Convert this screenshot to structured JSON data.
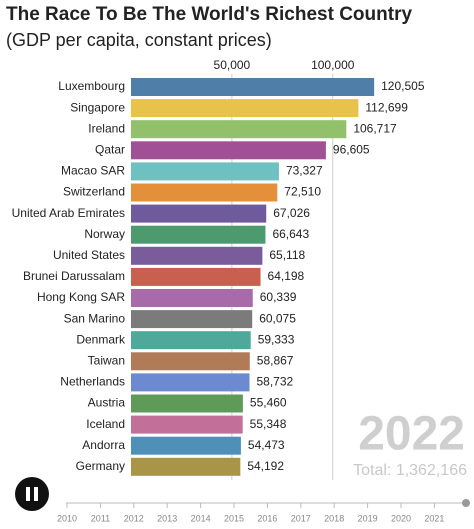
{
  "chart_data": {
    "type": "bar",
    "orientation": "horizontal",
    "title": "The Race To Be The World's Richest Country",
    "subtitle": "(GDP per capita, constant prices)",
    "categories": [
      "Luxembourg",
      "Singapore",
      "Ireland",
      "Qatar",
      "Macao SAR",
      "Switzerland",
      "United Arab Emirates",
      "Norway",
      "United States",
      "Brunei Darussalam",
      "Hong Kong SAR",
      "San Marino",
      "Denmark",
      "Taiwan",
      "Netherlands",
      "Austria",
      "Iceland",
      "Andorra",
      "Germany"
    ],
    "values": [
      120505,
      112699,
      106717,
      96605,
      73327,
      72510,
      67026,
      66643,
      65118,
      64198,
      60339,
      60075,
      59333,
      58867,
      58732,
      55460,
      55348,
      54473,
      54192
    ],
    "value_labels": [
      "120,505",
      "112,699",
      "106,717",
      "96,605",
      "73,327",
      "72,510",
      "67,026",
      "66,643",
      "65,118",
      "64,198",
      "60,339",
      "60,075",
      "59,333",
      "58,867",
      "58,732",
      "55,460",
      "55,348",
      "54,473",
      "54,192"
    ],
    "colors": [
      "#4f7ea8",
      "#e8c34a",
      "#93c06a",
      "#a05195",
      "#6ec1c0",
      "#e48f3a",
      "#6e5a9c",
      "#4e9a6f",
      "#7a5c9a",
      "#c9604f",
      "#a86aa8",
      "#7b7b7b",
      "#4fa89a",
      "#b07b56",
      "#6d89cf",
      "#5e9b58",
      "#c2709a",
      "#4e90b8",
      "#a89545"
    ],
    "xlim": [
      0,
      170000
    ],
    "xticks": [
      {
        "value": 50000,
        "label": "50,000"
      },
      {
        "value": 100000,
        "label": "100,000"
      }
    ],
    "grid": true,
    "year": 2022,
    "total_label": "Total: 1,362,166",
    "timeline": [
      2010,
      2011,
      2012,
      2013,
      2014,
      2015,
      2016,
      2017,
      2018,
      2019,
      2020,
      2021
    ]
  }
}
